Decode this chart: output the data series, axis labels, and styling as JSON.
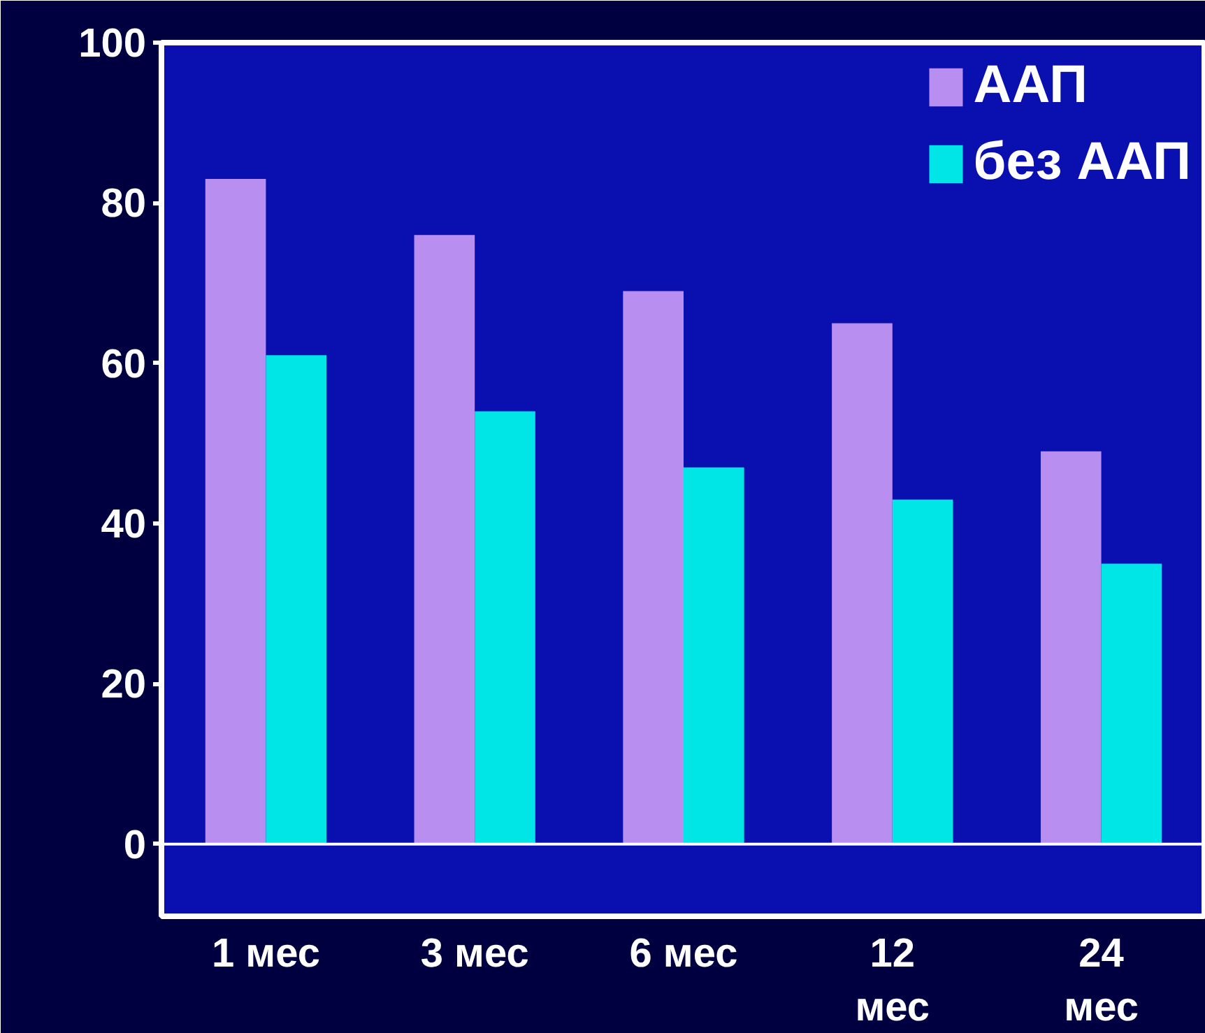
{
  "chart_data": {
    "type": "bar",
    "categories": [
      "1 мес",
      "3 мес",
      "6 мес",
      "12\nмес",
      "24\nмес"
    ],
    "series": [
      {
        "name": "ААП",
        "color": "#b88ef0",
        "values": [
          83,
          76,
          69,
          65,
          49
        ]
      },
      {
        "name": "без ААП",
        "color": "#00e5e5",
        "values": [
          61,
          54,
          47,
          43,
          35
        ]
      }
    ],
    "ylim": [
      -9,
      100
    ],
    "yticks": [
      0,
      20,
      40,
      60,
      80,
      100
    ],
    "grid": false,
    "legend": "top right",
    "ref_lines": [
      {
        "axis": "y",
        "value": 0,
        "color": "#ffffff"
      }
    ]
  }
}
